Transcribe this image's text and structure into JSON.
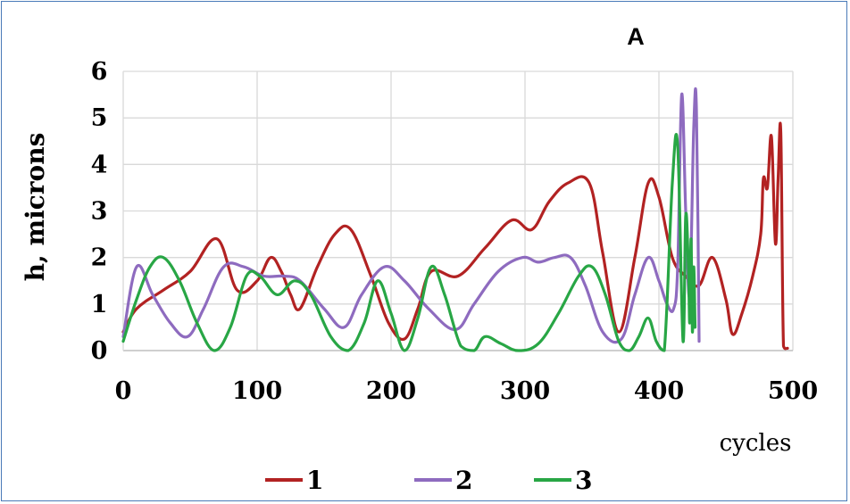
{
  "chart_data": {
    "type": "line",
    "title": "A",
    "xlabel": "cycles",
    "ylabel": "h, microns",
    "xlim": [
      0,
      500
    ],
    "ylim": [
      0,
      6
    ],
    "xticks": [
      "0",
      "100",
      "200",
      "300",
      "400",
      "500"
    ],
    "yticks": [
      "0",
      "1",
      "2",
      "3",
      "4",
      "5",
      "6"
    ],
    "grid": true,
    "legend_position": "bottom",
    "series": [
      {
        "name": "1",
        "color": "#b22222",
        "points": [
          [
            0,
            0.4
          ],
          [
            10,
            0.9
          ],
          [
            30,
            1.3
          ],
          [
            50,
            1.7
          ],
          [
            70,
            2.4
          ],
          [
            85,
            1.3
          ],
          [
            100,
            1.5
          ],
          [
            110,
            2.0
          ],
          [
            118,
            1.7
          ],
          [
            125,
            1.2
          ],
          [
            132,
            0.9
          ],
          [
            145,
            1.8
          ],
          [
            158,
            2.5
          ],
          [
            170,
            2.6
          ],
          [
            185,
            1.6
          ],
          [
            198,
            0.6
          ],
          [
            210,
            0.25
          ],
          [
            220,
            0.9
          ],
          [
            230,
            1.7
          ],
          [
            250,
            1.6
          ],
          [
            270,
            2.2
          ],
          [
            290,
            2.8
          ],
          [
            305,
            2.6
          ],
          [
            318,
            3.2
          ],
          [
            332,
            3.6
          ],
          [
            348,
            3.6
          ],
          [
            358,
            2.1
          ],
          [
            370,
            0.4
          ],
          [
            382,
            2.0
          ],
          [
            392,
            3.6
          ],
          [
            400,
            3.3
          ],
          [
            410,
            2.0
          ],
          [
            420,
            1.6
          ],
          [
            430,
            1.4
          ],
          [
            440,
            2.0
          ],
          [
            450,
            1.1
          ],
          [
            455,
            0.35
          ],
          [
            462,
            0.8
          ],
          [
            470,
            1.6
          ],
          [
            476,
            2.5
          ],
          [
            478,
            3.7
          ],
          [
            481,
            3.5
          ],
          [
            484,
            4.6
          ],
          [
            487,
            2.3
          ],
          [
            489,
            3.7
          ],
          [
            491,
            4.7
          ],
          [
            493,
            0.1
          ],
          [
            496,
            0.05
          ]
        ]
      },
      {
        "name": "2",
        "color": "#8e6bbf",
        "points": [
          [
            0,
            0.3
          ],
          [
            10,
            1.8
          ],
          [
            22,
            1.2
          ],
          [
            35,
            0.6
          ],
          [
            48,
            0.3
          ],
          [
            60,
            0.9
          ],
          [
            75,
            1.8
          ],
          [
            90,
            1.8
          ],
          [
            105,
            1.6
          ],
          [
            120,
            1.6
          ],
          [
            132,
            1.5
          ],
          [
            150,
            0.9
          ],
          [
            165,
            0.5
          ],
          [
            178,
            1.2
          ],
          [
            195,
            1.8
          ],
          [
            210,
            1.5
          ],
          [
            228,
            0.9
          ],
          [
            248,
            0.45
          ],
          [
            262,
            1.0
          ],
          [
            280,
            1.7
          ],
          [
            298,
            2.0
          ],
          [
            310,
            1.9
          ],
          [
            322,
            2.0
          ],
          [
            334,
            2.0
          ],
          [
            345,
            1.4
          ],
          [
            358,
            0.4
          ],
          [
            372,
            0.25
          ],
          [
            382,
            1.2
          ],
          [
            392,
            2.0
          ],
          [
            400,
            1.5
          ],
          [
            406,
            1.0
          ],
          [
            411,
            0.9
          ],
          [
            414,
            1.8
          ],
          [
            417,
            5.5
          ],
          [
            420,
            3.0
          ],
          [
            423,
            1.2
          ],
          [
            426,
            4.8
          ],
          [
            428,
            5.2
          ],
          [
            430,
            0.2
          ]
        ]
      },
      {
        "name": "3",
        "color": "#28a645",
        "points": [
          [
            0,
            0.2
          ],
          [
            10,
            1.1
          ],
          [
            20,
            1.8
          ],
          [
            30,
            2.0
          ],
          [
            42,
            1.5
          ],
          [
            55,
            0.6
          ],
          [
            68,
            0.0
          ],
          [
            80,
            0.5
          ],
          [
            92,
            1.6
          ],
          [
            102,
            1.6
          ],
          [
            115,
            1.2
          ],
          [
            128,
            1.5
          ],
          [
            140,
            1.2
          ],
          [
            155,
            0.3
          ],
          [
            168,
            0.0
          ],
          [
            180,
            0.6
          ],
          [
            190,
            1.5
          ],
          [
            200,
            0.8
          ],
          [
            210,
            0.0
          ],
          [
            220,
            0.7
          ],
          [
            230,
            1.8
          ],
          [
            240,
            1.2
          ],
          [
            252,
            0.1
          ],
          [
            262,
            0.0
          ],
          [
            270,
            0.3
          ],
          [
            282,
            0.15
          ],
          [
            295,
            0.0
          ],
          [
            310,
            0.15
          ],
          [
            325,
            0.8
          ],
          [
            340,
            1.6
          ],
          [
            350,
            1.8
          ],
          [
            360,
            1.2
          ],
          [
            370,
            0.2
          ],
          [
            378,
            0.0
          ],
          [
            385,
            0.3
          ],
          [
            392,
            0.7
          ],
          [
            398,
            0.2
          ],
          [
            404,
            0.0
          ],
          [
            410,
            3.6
          ],
          [
            414,
            4.4
          ],
          [
            418,
            0.2
          ],
          [
            420,
            2.9
          ],
          [
            422,
            1.8
          ],
          [
            423,
            0.6
          ],
          [
            424,
            2.4
          ],
          [
            425,
            0.4
          ],
          [
            426,
            1.8
          ],
          [
            427,
            0.5
          ]
        ]
      }
    ]
  }
}
